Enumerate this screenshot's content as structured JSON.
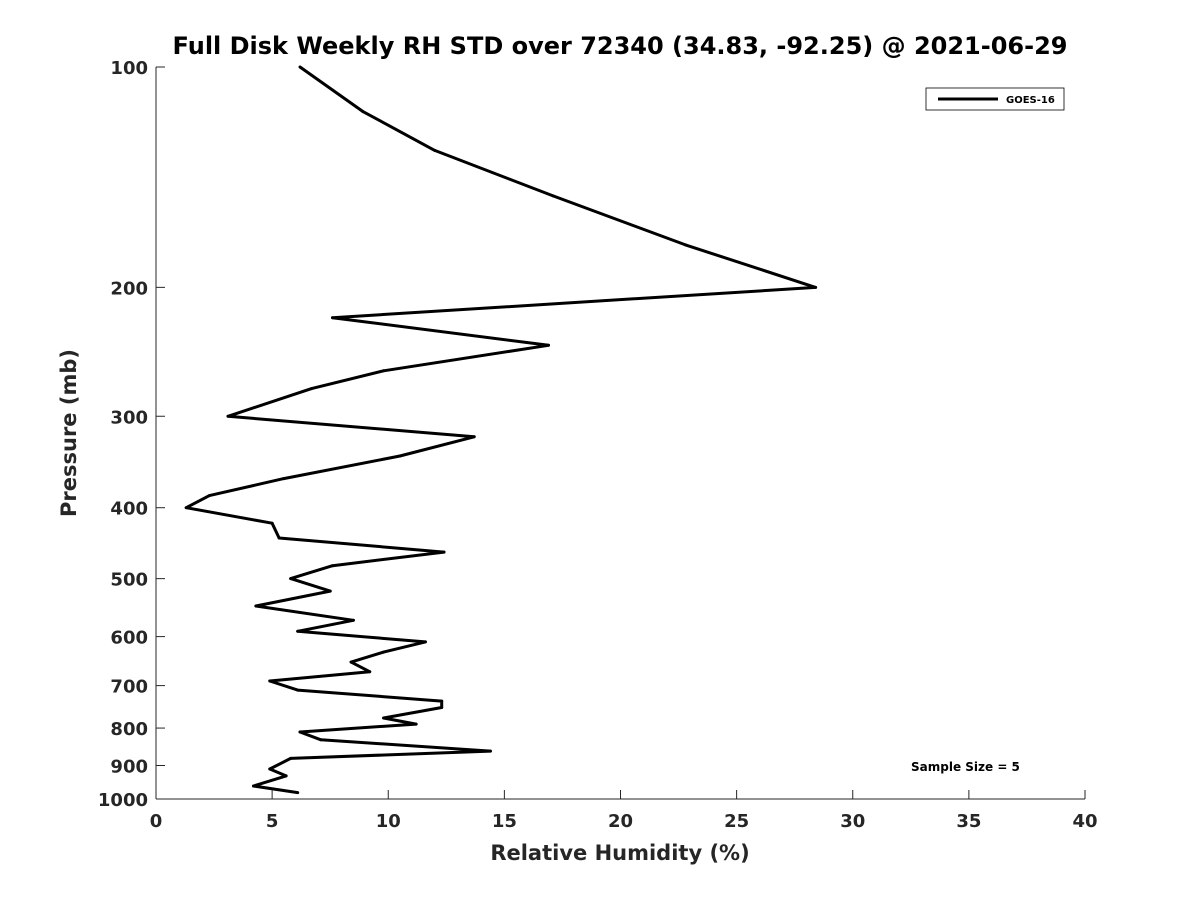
{
  "chart_data": {
    "type": "line",
    "title": "Full Disk Weekly RH STD over 72340 (34.83, -92.25) @ 2021-06-29",
    "xlabel": "Relative Humidity (%)",
    "ylabel": "Pressure (mb)",
    "xlim": [
      0,
      40
    ],
    "ylim": [
      100,
      1000
    ],
    "y_scale": "log",
    "y_reversed": true,
    "x_ticks": [
      0,
      5,
      10,
      15,
      20,
      25,
      30,
      35,
      40
    ],
    "x_tick_labels": [
      "0",
      "5",
      "10",
      "15",
      "20",
      "25",
      "30",
      "35",
      "40"
    ],
    "y_ticks": [
      100,
      200,
      300,
      400,
      500,
      600,
      700,
      800,
      900,
      1000
    ],
    "y_tick_labels": [
      "100",
      "200",
      "300",
      "400",
      "500",
      "600",
      "700",
      "800",
      "900",
      "1000"
    ],
    "grid": false,
    "legend_position": "top-right",
    "annotation": "Sample Size = 5",
    "series": [
      {
        "name": "GOES-16",
        "color": "#000000",
        "x": [
          6.2,
          8.9,
          12.0,
          17.1,
          22.8,
          28.4,
          7.6,
          16.9,
          9.8,
          6.7,
          3.1,
          13.7,
          10.5,
          5.5,
          2.3,
          1.3,
          5.0,
          5.3,
          12.4,
          7.6,
          5.8,
          7.5,
          4.3,
          8.5,
          6.1,
          11.6,
          9.8,
          8.4,
          9.2,
          4.9,
          6.1,
          12.3,
          12.3,
          9.8,
          11.2,
          6.2,
          7.1,
          14.4,
          5.8,
          4.9,
          5.6,
          4.2,
          6.1
        ],
        "y": [
          100,
          115,
          130,
          150,
          175,
          200,
          220,
          240,
          260,
          275,
          300,
          320,
          340,
          365,
          385,
          400,
          420,
          440,
          460,
          480,
          500,
          520,
          545,
          570,
          590,
          610,
          630,
          650,
          670,
          690,
          710,
          735,
          750,
          775,
          790,
          810,
          830,
          860,
          880,
          910,
          930,
          960,
          980
        ]
      }
    ]
  }
}
